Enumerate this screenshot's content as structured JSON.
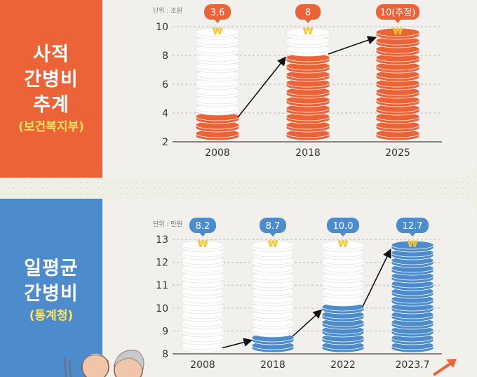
{
  "private_care": {
    "title_lines": [
      "사적",
      "간병비",
      "추계"
    ],
    "source": "(보건복지부)"
  },
  "daily_care": {
    "title_lines": [
      "일평균",
      "간병비"
    ],
    "source": "(통계청)"
  },
  "colors": {
    "orange": "#ec6337",
    "blue": "#4c8bcc",
    "coin_white": "#ffffff",
    "won_icon": "#f7c62f"
  },
  "chart_data": [
    {
      "type": "bar",
      "unit_label": "단위 : 조원",
      "categories": [
        "2008",
        "2018",
        "2025"
      ],
      "values": [
        3.6,
        8,
        10
      ],
      "value_labels": [
        "3.6",
        "8",
        "10(추정)"
      ],
      "yticks": [
        2,
        4,
        6,
        8,
        10
      ],
      "ylim": [
        2,
        10
      ],
      "grid": true,
      "style": "coin-stacks"
    },
    {
      "type": "bar",
      "unit_label": "단위 : 만원",
      "categories": [
        "2008",
        "2018",
        "2022",
        "2023.7"
      ],
      "values": [
        8.2,
        8.7,
        10.0,
        12.7
      ],
      "value_labels": [
        "8.2",
        "8.7",
        "10.0",
        "12.7"
      ],
      "yticks": [
        8,
        9,
        10,
        11,
        12,
        13
      ],
      "ylim": [
        8,
        13
      ],
      "grid": true,
      "style": "coin-stacks"
    }
  ]
}
